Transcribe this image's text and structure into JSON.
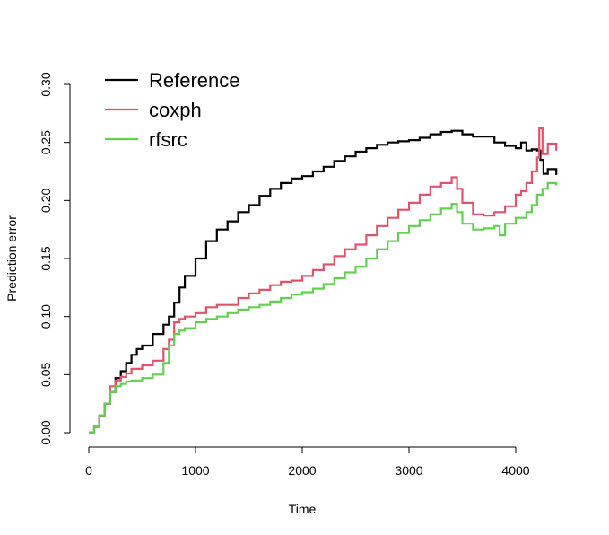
{
  "chart_data": {
    "type": "line",
    "title": "",
    "xlabel": "Time",
    "ylabel": "Prediction error",
    "xlim": [
      0,
      4380
    ],
    "ylim": [
      0,
      0.3
    ],
    "x_ticks": [
      0,
      1000,
      2000,
      3000,
      4000
    ],
    "x_tick_labels": [
      "0",
      "1000",
      "2000",
      "3000",
      "4000"
    ],
    "y_ticks": [
      0,
      0.05,
      0.1,
      0.15,
      0.2,
      0.25,
      0.3
    ],
    "y_tick_labels": [
      "0.00",
      "0.05",
      "0.10",
      "0.15",
      "0.20",
      "0.25",
      "0.30"
    ],
    "grid": false,
    "legend_position": "top-left",
    "series": [
      {
        "name": "Reference",
        "color": "#000000",
        "x": [
          0,
          50,
          100,
          150,
          200,
          250,
          300,
          350,
          400,
          450,
          500,
          600,
          700,
          750,
          800,
          850,
          900,
          1000,
          1100,
          1200,
          1300,
          1400,
          1500,
          1600,
          1700,
          1800,
          1900,
          2000,
          2100,
          2200,
          2300,
          2400,
          2500,
          2600,
          2700,
          2800,
          2900,
          3000,
          3100,
          3200,
          3300,
          3400,
          3500,
          3600,
          3700,
          3800,
          3900,
          4000,
          4050,
          4100,
          4150,
          4200,
          4230,
          4260,
          4300,
          4380
        ],
        "y": [
          0,
          0.005,
          0.015,
          0.025,
          0.035,
          0.047,
          0.053,
          0.06,
          0.067,
          0.072,
          0.075,
          0.085,
          0.093,
          0.1,
          0.112,
          0.125,
          0.135,
          0.15,
          0.165,
          0.175,
          0.182,
          0.19,
          0.196,
          0.204,
          0.21,
          0.215,
          0.219,
          0.221,
          0.225,
          0.229,
          0.234,
          0.238,
          0.242,
          0.245,
          0.248,
          0.25,
          0.251,
          0.252,
          0.254,
          0.257,
          0.259,
          0.26,
          0.257,
          0.255,
          0.255,
          0.25,
          0.247,
          0.245,
          0.25,
          0.243,
          0.244,
          0.243,
          0.235,
          0.223,
          0.227,
          0.222
        ]
      },
      {
        "name": "coxph",
        "color": "#DF536B",
        "x": [
          0,
          50,
          100,
          150,
          200,
          250,
          300,
          350,
          400,
          500,
          600,
          700,
          750,
          800,
          850,
          900,
          1000,
          1100,
          1200,
          1300,
          1400,
          1500,
          1600,
          1700,
          1800,
          1900,
          2000,
          2100,
          2200,
          2300,
          2400,
          2500,
          2600,
          2700,
          2800,
          2900,
          3000,
          3100,
          3200,
          3300,
          3400,
          3450,
          3500,
          3600,
          3700,
          3800,
          3900,
          4000,
          4050,
          4100,
          4150,
          4200,
          4220,
          4250,
          4300,
          4380
        ],
        "y": [
          0,
          0.005,
          0.015,
          0.025,
          0.04,
          0.045,
          0.048,
          0.051,
          0.055,
          0.058,
          0.062,
          0.072,
          0.08,
          0.095,
          0.098,
          0.1,
          0.103,
          0.108,
          0.11,
          0.11,
          0.116,
          0.12,
          0.123,
          0.127,
          0.13,
          0.131,
          0.135,
          0.14,
          0.145,
          0.152,
          0.158,
          0.162,
          0.17,
          0.178,
          0.185,
          0.192,
          0.198,
          0.205,
          0.212,
          0.215,
          0.22,
          0.21,
          0.198,
          0.188,
          0.187,
          0.19,
          0.195,
          0.205,
          0.208,
          0.215,
          0.225,
          0.237,
          0.262,
          0.24,
          0.249,
          0.243
        ]
      },
      {
        "name": "rfsrc",
        "color": "#61D04F",
        "x": [
          0,
          50,
          100,
          150,
          200,
          250,
          300,
          350,
          400,
          500,
          600,
          700,
          750,
          800,
          850,
          900,
          1000,
          1100,
          1200,
          1300,
          1400,
          1500,
          1600,
          1700,
          1800,
          1900,
          2000,
          2100,
          2200,
          2300,
          2400,
          2500,
          2600,
          2700,
          2800,
          2900,
          3000,
          3100,
          3200,
          3300,
          3400,
          3450,
          3500,
          3600,
          3700,
          3800,
          3850,
          3900,
          4000,
          4100,
          4150,
          4200,
          4250,
          4300,
          4380
        ],
        "y": [
          0,
          0.005,
          0.015,
          0.025,
          0.035,
          0.04,
          0.042,
          0.044,
          0.045,
          0.047,
          0.05,
          0.06,
          0.075,
          0.085,
          0.088,
          0.09,
          0.095,
          0.098,
          0.1,
          0.103,
          0.106,
          0.108,
          0.11,
          0.113,
          0.116,
          0.119,
          0.121,
          0.124,
          0.128,
          0.133,
          0.138,
          0.143,
          0.15,
          0.158,
          0.165,
          0.172,
          0.178,
          0.183,
          0.188,
          0.193,
          0.197,
          0.19,
          0.18,
          0.175,
          0.176,
          0.178,
          0.17,
          0.18,
          0.185,
          0.19,
          0.196,
          0.205,
          0.21,
          0.215,
          0.213
        ]
      }
    ]
  }
}
